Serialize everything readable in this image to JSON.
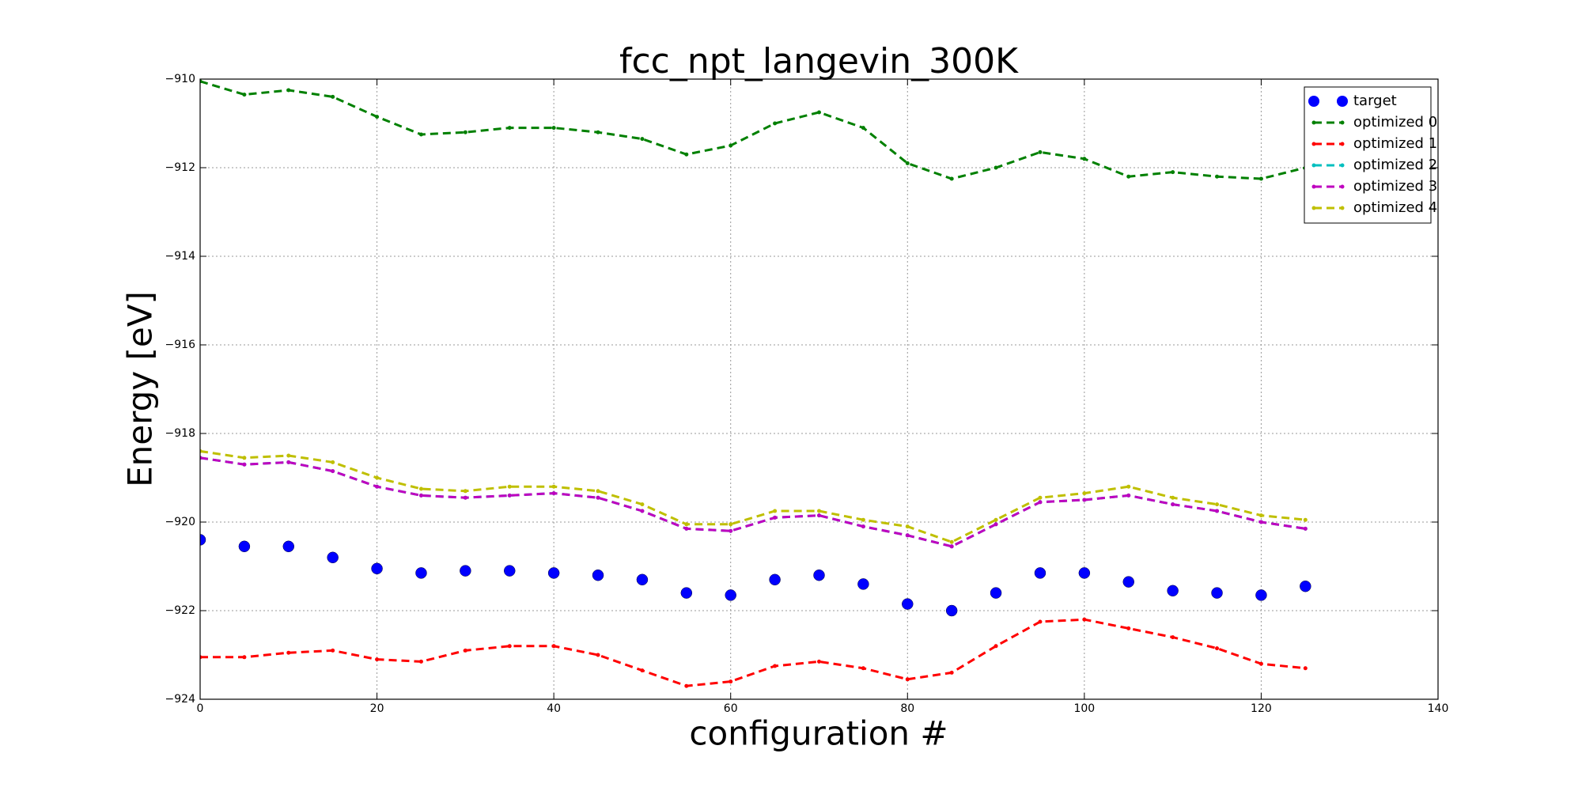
{
  "chart_data": {
    "type": "line",
    "title": "fcc_npt_langevin_300K",
    "xlabel": "configuration #",
    "ylabel": "Energy [eV]",
    "x": [
      0,
      5,
      10,
      15,
      20,
      25,
      30,
      35,
      40,
      45,
      50,
      55,
      60,
      65,
      70,
      75,
      80,
      85,
      90,
      95,
      100,
      105,
      110,
      115,
      120,
      125
    ],
    "series": [
      {
        "name": "target",
        "color": "#0000ff",
        "linestyle": "none",
        "marker": "circle",
        "values": [
          -920.4,
          -920.55,
          -920.55,
          -920.8,
          -921.05,
          -921.15,
          -921.1,
          -921.1,
          -921.15,
          -921.2,
          -921.3,
          -921.6,
          -921.65,
          -921.3,
          -921.2,
          -921.4,
          -921.85,
          -922.0,
          -921.6,
          -921.15,
          -921.15,
          -921.35,
          -921.55,
          -921.6,
          -921.65,
          -921.45
        ]
      },
      {
        "name": "optimized 0",
        "color": "#008000",
        "linestyle": "dashed",
        "marker": "dot",
        "values": [
          -910.05,
          -910.35,
          -910.25,
          -910.4,
          -910.85,
          -911.25,
          -911.2,
          -911.1,
          -911.1,
          -911.2,
          -911.35,
          -911.7,
          -911.5,
          -911.0,
          -910.75,
          -911.1,
          -911.9,
          -912.25,
          -912.0,
          -911.65,
          -911.8,
          -912.2,
          -912.1,
          -912.2,
          -912.25,
          -912.0
        ]
      },
      {
        "name": "optimized 1",
        "color": "#ff0000",
        "linestyle": "dashed",
        "marker": "dot",
        "values": [
          -923.05,
          -923.05,
          -922.95,
          -922.9,
          -923.1,
          -923.15,
          -922.9,
          -922.8,
          -922.8,
          -923.0,
          -923.35,
          -923.7,
          -923.6,
          -923.25,
          -923.15,
          -923.3,
          -923.55,
          -923.4,
          -922.8,
          -922.25,
          -922.2,
          -922.4,
          -922.6,
          -922.85,
          -923.2,
          -923.3
        ]
      },
      {
        "name": "optimized 2",
        "color": "#00bfbf",
        "linestyle": "dashed",
        "marker": "dot",
        "values": [
          -918.55,
          -918.7,
          -918.65,
          -918.85,
          -919.2,
          -919.4,
          -919.45,
          -919.4,
          -919.35,
          -919.45,
          -919.75,
          -920.15,
          -920.2,
          -919.9,
          -919.85,
          -920.1,
          -920.3,
          -920.55,
          -920.05,
          -919.55,
          -919.5,
          -919.4,
          -919.6,
          -919.75,
          -920.0,
          -920.15
        ]
      },
      {
        "name": "optimized 3",
        "color": "#bf00bf",
        "linestyle": "dashed",
        "marker": "dot",
        "values": [
          -918.55,
          -918.7,
          -918.65,
          -918.85,
          -919.2,
          -919.4,
          -919.45,
          -919.4,
          -919.35,
          -919.45,
          -919.75,
          -920.15,
          -920.2,
          -919.9,
          -919.85,
          -920.1,
          -920.3,
          -920.55,
          -920.05,
          -919.55,
          -919.5,
          -919.4,
          -919.6,
          -919.75,
          -920.0,
          -920.15
        ]
      },
      {
        "name": "optimized 4",
        "color": "#bfbf00",
        "linestyle": "dashed",
        "marker": "dot",
        "values": [
          -918.4,
          -918.55,
          -918.5,
          -918.65,
          -919.0,
          -919.25,
          -919.3,
          -919.2,
          -919.2,
          -919.3,
          -919.6,
          -920.05,
          -920.05,
          -919.75,
          -919.75,
          -919.95,
          -920.1,
          -920.45,
          -919.95,
          -919.45,
          -919.35,
          -919.2,
          -919.45,
          -919.6,
          -919.85,
          -919.95
        ]
      }
    ],
    "xlim": [
      0,
      140
    ],
    "xticks": [
      0,
      20,
      40,
      60,
      80,
      100,
      120,
      140
    ],
    "ylim": [
      -924,
      -910
    ],
    "yticks": [
      {
        "value": -924,
        "label": "−924"
      },
      {
        "value": -922,
        "label": "−922"
      },
      {
        "value": -920,
        "label": "−920"
      },
      {
        "value": -918,
        "label": "−918"
      },
      {
        "value": -916,
        "label": "−916"
      },
      {
        "value": -914,
        "label": "−914"
      },
      {
        "value": -912,
        "label": "−912"
      },
      {
        "value": -910,
        "label": "−910"
      }
    ],
    "grid": true,
    "legend": "upper right"
  }
}
